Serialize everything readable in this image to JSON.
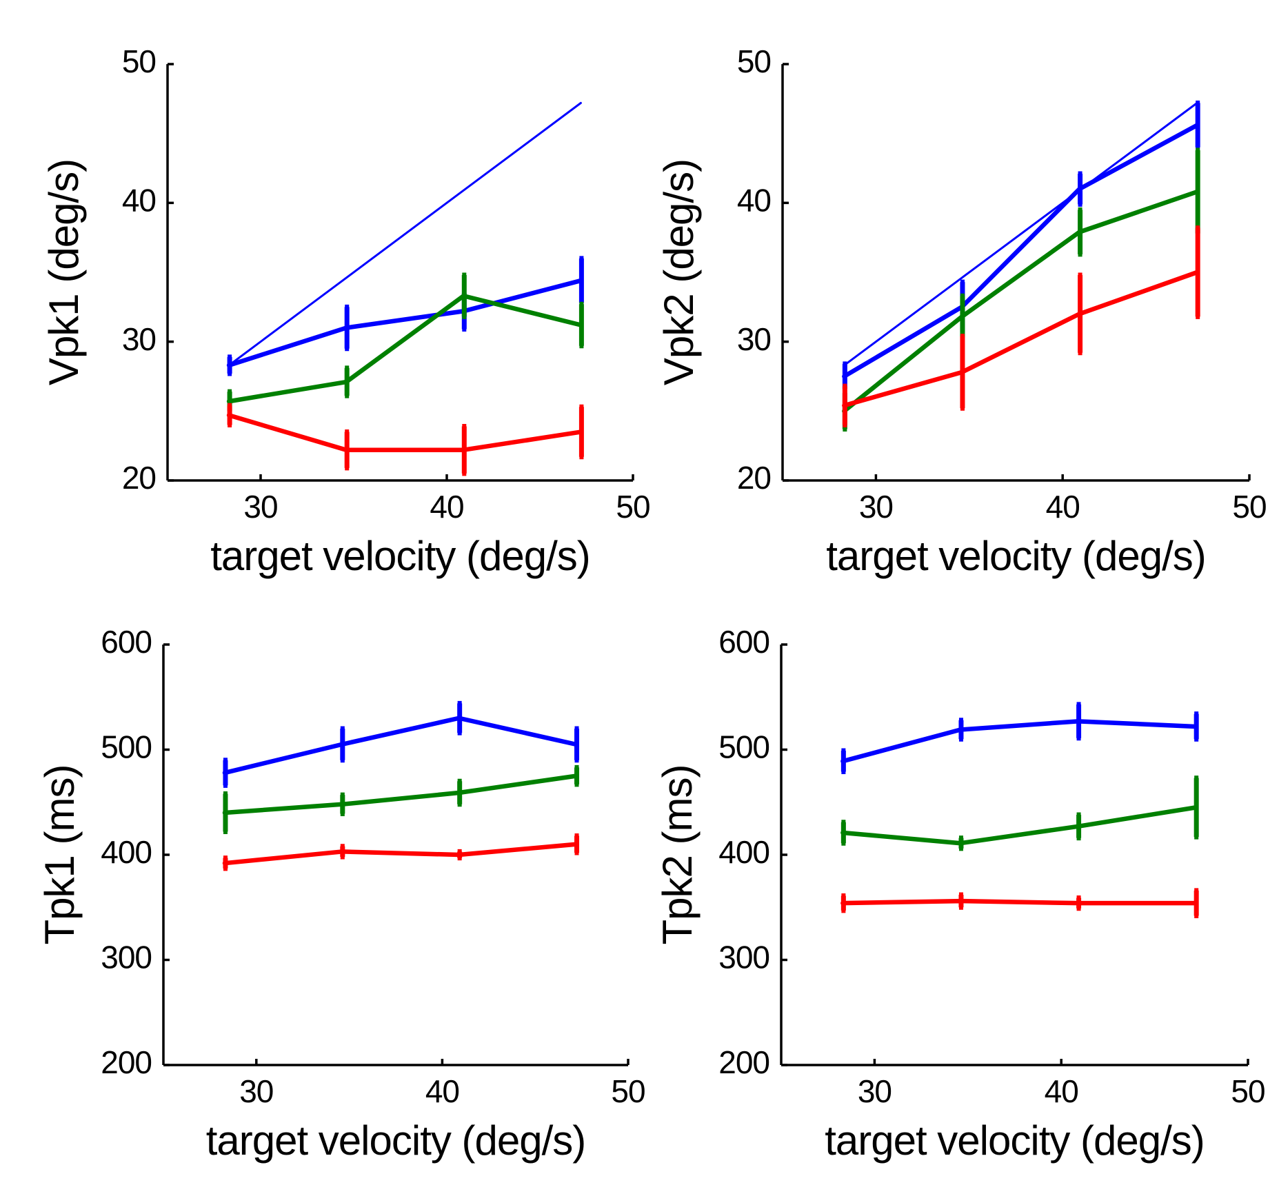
{
  "chart_data": [
    {
      "type": "line",
      "id": "vpk1",
      "xlabel": "target velocity (deg/s)",
      "ylabel": "Vpk1 (deg/s)",
      "xlim": [
        25,
        50
      ],
      "ylim": [
        20,
        50
      ],
      "xticks": [
        30,
        40,
        50
      ],
      "yticks": [
        20,
        30,
        40,
        50
      ],
      "x": [
        28.3,
        34.6,
        40.9,
        47.2
      ],
      "series": [
        {
          "name": "target",
          "color": "#0000ff",
          "thin": true,
          "values": [
            28.3,
            34.6,
            40.9,
            47.2
          ],
          "err": null
        },
        {
          "name": "blue",
          "color": "#0000ff",
          "values": [
            28.3,
            31.0,
            32.2,
            34.4
          ],
          "err": [
            0.6,
            1.5,
            1.3,
            1.6
          ]
        },
        {
          "name": "green",
          "color": "#008000",
          "values": [
            25.7,
            27.1,
            33.3,
            31.2
          ],
          "err": [
            0.7,
            1.0,
            1.5,
            1.5
          ]
        },
        {
          "name": "red",
          "color": "#ff0000",
          "values": [
            24.7,
            22.2,
            22.2,
            23.5
          ],
          "err": [
            0.7,
            1.3,
            1.7,
            1.8
          ]
        }
      ]
    },
    {
      "type": "line",
      "id": "vpk2",
      "xlabel": "target velocity (deg/s)",
      "ylabel": "Vpk2 (deg/s)",
      "xlim": [
        25,
        50
      ],
      "ylim": [
        20,
        50
      ],
      "xticks": [
        30,
        40,
        50
      ],
      "yticks": [
        20,
        30,
        40,
        50
      ],
      "x": [
        28.3,
        34.6,
        40.9,
        47.2
      ],
      "series": [
        {
          "name": "target",
          "color": "#0000ff",
          "thin": true,
          "values": [
            28.3,
            34.6,
            40.9,
            47.2
          ],
          "err": null
        },
        {
          "name": "blue",
          "color": "#0000ff",
          "values": [
            27.5,
            32.5,
            41.0,
            45.6
          ],
          "err": [
            0.9,
            1.8,
            1.1,
            1.6
          ]
        },
        {
          "name": "green",
          "color": "#008000",
          "values": [
            25.0,
            31.8,
            37.9,
            40.8
          ],
          "err": [
            1.3,
            1.5,
            1.6,
            3.0
          ]
        },
        {
          "name": "red",
          "color": "#ff0000",
          "values": [
            25.4,
            27.8,
            32.0,
            35.0
          ],
          "err": [
            1.4,
            2.6,
            2.8,
            3.2
          ]
        }
      ]
    },
    {
      "type": "line",
      "id": "tpk1",
      "xlabel": "target velocity (deg/s)",
      "ylabel": "Tpk1 (ms)",
      "xlim": [
        25,
        50
      ],
      "ylim": [
        200,
        600
      ],
      "xticks": [
        30,
        40,
        50
      ],
      "yticks": [
        200,
        300,
        400,
        500,
        600
      ],
      "x": [
        28.3,
        34.6,
        40.9,
        47.2
      ],
      "series": [
        {
          "name": "blue",
          "color": "#0000ff",
          "values": [
            478,
            505,
            530,
            505
          ],
          "err": [
            12,
            15,
            14,
            15
          ]
        },
        {
          "name": "green",
          "color": "#008000",
          "values": [
            440,
            448,
            459,
            475
          ],
          "err": [
            18,
            9,
            11,
            8
          ]
        },
        {
          "name": "red",
          "color": "#ff0000",
          "values": [
            392,
            403,
            400,
            410
          ],
          "err": [
            5,
            5,
            3,
            8
          ]
        }
      ]
    },
    {
      "type": "line",
      "id": "tpk2",
      "xlabel": "target velocity (deg/s)",
      "ylabel": "Tpk2 (ms)",
      "xlim": [
        25,
        50
      ],
      "ylim": [
        200,
        600
      ],
      "xticks": [
        30,
        40,
        50
      ],
      "yticks": [
        200,
        300,
        400,
        500,
        600
      ],
      "x": [
        28.3,
        34.6,
        40.9,
        47.2
      ],
      "series": [
        {
          "name": "blue",
          "color": "#0000ff",
          "values": [
            489,
            519,
            527,
            522
          ],
          "err": [
            10,
            9,
            16,
            12
          ]
        },
        {
          "name": "green",
          "color": "#008000",
          "values": [
            421,
            411,
            427,
            445
          ],
          "err": [
            10,
            5,
            11,
            28
          ]
        },
        {
          "name": "red",
          "color": "#ff0000",
          "values": [
            354,
            356,
            354,
            354
          ],
          "err": [
            7,
            6,
            5,
            12
          ]
        }
      ]
    }
  ]
}
